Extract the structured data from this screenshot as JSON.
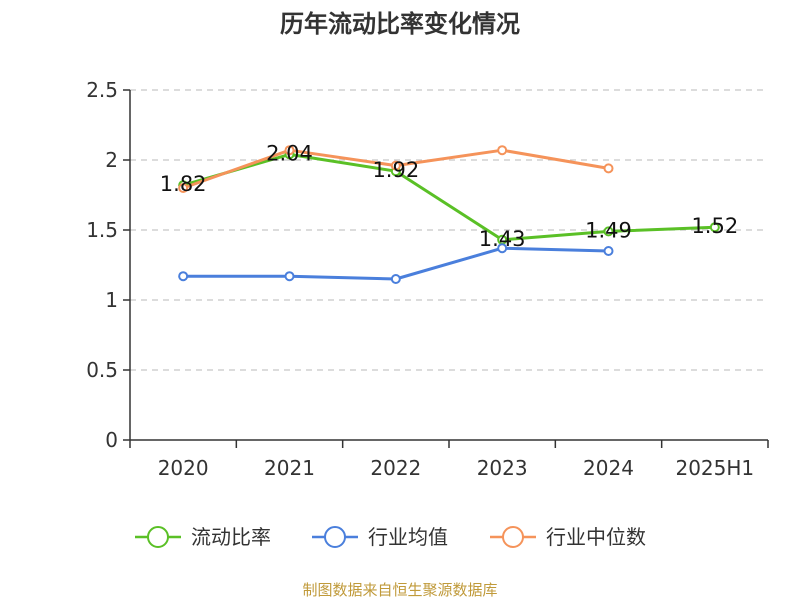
{
  "chart_data": {
    "type": "line",
    "title": "历年流动比率变化情况",
    "categories": [
      "2020",
      "2021",
      "2022",
      "2023",
      "2024",
      "2025H1"
    ],
    "ylim": [
      0,
      2.5
    ],
    "yticks": [
      "0",
      "0.5",
      "1",
      "1.5",
      "2",
      "2.5"
    ],
    "grid": true,
    "legend_position": "bottom",
    "series": [
      {
        "name": "流动比率",
        "color": "#5ac026",
        "values": [
          1.82,
          2.04,
          1.92,
          1.43,
          1.49,
          1.52
        ],
        "labels": [
          "1.82",
          "2.04",
          "1.92",
          "1.43",
          "1.49",
          "1.52"
        ]
      },
      {
        "name": "行业均值",
        "color": "#4a7fdc",
        "values": [
          1.17,
          1.17,
          1.15,
          1.37,
          1.35,
          null
        ]
      },
      {
        "name": "行业中位数",
        "color": "#f5935a",
        "values": [
          1.8,
          2.07,
          1.96,
          2.07,
          1.94,
          null
        ]
      }
    ],
    "source": "制图数据来自恒生聚源数据库"
  }
}
